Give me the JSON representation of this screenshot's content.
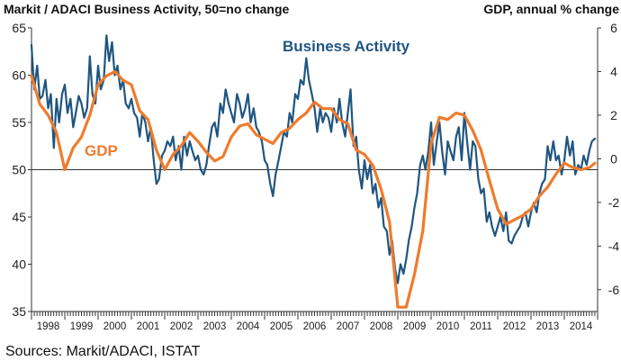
{
  "chart_data": {
    "type": "line",
    "title_left": "Markit / ADACI  Business Activity, 50=no change",
    "title_right": "GDP, annual % change",
    "source": "Sources: Markit/ADACI, ISTAT",
    "x_years": [
      "1998",
      "1999",
      "2000",
      "2001",
      "2002",
      "2003",
      "2004",
      "2005",
      "2006",
      "2007",
      "2008",
      "2009",
      "2010",
      "2011",
      "2012",
      "2013",
      "2014"
    ],
    "x_range": [
      1998.0,
      2015.0
    ],
    "y_left": {
      "ticks": [
        35,
        40,
        45,
        50,
        55,
        60,
        65
      ],
      "range": [
        35,
        65
      ],
      "reference": 50
    },
    "y_right": {
      "ticks": [
        -6,
        -4,
        -2,
        0,
        2,
        4,
        6
      ],
      "range": [
        -7,
        6
      ]
    },
    "colors": {
      "business_activity": "#1f5580",
      "gdp": "#ef7b2c",
      "axis": "#222222"
    },
    "series": [
      {
        "name": "Business Activity",
        "axis": "left",
        "points": [
          [
            1998.0,
            63.2
          ],
          [
            1998.08,
            58.5
          ],
          [
            1998.17,
            61.0
          ],
          [
            1998.25,
            57.5
          ],
          [
            1998.33,
            57.8
          ],
          [
            1998.42,
            59.5
          ],
          [
            1998.5,
            56.5
          ],
          [
            1998.58,
            58.0
          ],
          [
            1998.67,
            52.3
          ],
          [
            1998.75,
            57.5
          ],
          [
            1998.83,
            55.0
          ],
          [
            1998.92,
            58.0
          ],
          [
            1999.0,
            59.0
          ],
          [
            1999.08,
            56.0
          ],
          [
            1999.17,
            57.5
          ],
          [
            1999.25,
            54.5
          ],
          [
            1999.33,
            56.0
          ],
          [
            1999.42,
            57.8
          ],
          [
            1999.5,
            57.0
          ],
          [
            1999.58,
            55.5
          ],
          [
            1999.67,
            56.5
          ],
          [
            1999.75,
            62.0
          ],
          [
            1999.83,
            58.0
          ],
          [
            1999.92,
            57.0
          ],
          [
            2000.0,
            61.0
          ],
          [
            2000.08,
            58.5
          ],
          [
            2000.17,
            59.5
          ],
          [
            2000.25,
            64.2
          ],
          [
            2000.33,
            61.5
          ],
          [
            2000.42,
            63.5
          ],
          [
            2000.5,
            60.0
          ],
          [
            2000.58,
            61.0
          ],
          [
            2000.67,
            58.5
          ],
          [
            2000.75,
            59.5
          ],
          [
            2000.83,
            57.0
          ],
          [
            2000.92,
            56.5
          ],
          [
            2001.0,
            57.5
          ],
          [
            2001.08,
            56.0
          ],
          [
            2001.17,
            55.5
          ],
          [
            2001.25,
            53.5
          ],
          [
            2001.33,
            56.0
          ],
          [
            2001.42,
            55.0
          ],
          [
            2001.5,
            53.0
          ],
          [
            2001.58,
            54.5
          ],
          [
            2001.67,
            51.0
          ],
          [
            2001.75,
            48.5
          ],
          [
            2001.83,
            49.0
          ],
          [
            2001.92,
            51.5
          ],
          [
            2002.0,
            52.0
          ],
          [
            2002.08,
            53.0
          ],
          [
            2002.17,
            52.5
          ],
          [
            2002.25,
            53.5
          ],
          [
            2002.33,
            51.0
          ],
          [
            2002.42,
            52.5
          ],
          [
            2002.5,
            50.0
          ],
          [
            2002.58,
            53.5
          ],
          [
            2002.67,
            51.5
          ],
          [
            2002.75,
            53.0
          ],
          [
            2002.83,
            52.0
          ],
          [
            2002.92,
            51.0
          ],
          [
            2003.0,
            51.5
          ],
          [
            2003.08,
            50.0
          ],
          [
            2003.17,
            49.5
          ],
          [
            2003.25,
            50.5
          ],
          [
            2003.33,
            52.5
          ],
          [
            2003.42,
            54.5
          ],
          [
            2003.5,
            55.0
          ],
          [
            2003.58,
            53.5
          ],
          [
            2003.67,
            57.0
          ],
          [
            2003.75,
            56.0
          ],
          [
            2003.83,
            58.5
          ],
          [
            2003.92,
            57.0
          ],
          [
            2004.0,
            56.0
          ],
          [
            2004.08,
            55.0
          ],
          [
            2004.17,
            58.0
          ],
          [
            2004.25,
            57.0
          ],
          [
            2004.33,
            55.5
          ],
          [
            2004.42,
            56.5
          ],
          [
            2004.5,
            58.0
          ],
          [
            2004.58,
            55.0
          ],
          [
            2004.67,
            56.5
          ],
          [
            2004.75,
            54.5
          ],
          [
            2004.83,
            54.0
          ],
          [
            2004.92,
            53.0
          ],
          [
            2005.0,
            51.0
          ],
          [
            2005.08,
            50.5
          ],
          [
            2005.17,
            48.5
          ],
          [
            2005.25,
            47.2
          ],
          [
            2005.33,
            49.5
          ],
          [
            2005.42,
            51.0
          ],
          [
            2005.5,
            52.5
          ],
          [
            2005.58,
            54.0
          ],
          [
            2005.67,
            53.5
          ],
          [
            2005.75,
            56.0
          ],
          [
            2005.83,
            55.0
          ],
          [
            2005.92,
            58.0
          ],
          [
            2006.0,
            57.5
          ],
          [
            2006.08,
            59.5
          ],
          [
            2006.17,
            59.0
          ],
          [
            2006.25,
            61.8
          ],
          [
            2006.33,
            59.5
          ],
          [
            2006.42,
            58.0
          ],
          [
            2006.5,
            56.5
          ],
          [
            2006.58,
            54.0
          ],
          [
            2006.67,
            56.5
          ],
          [
            2006.75,
            55.0
          ],
          [
            2006.83,
            56.0
          ],
          [
            2006.92,
            55.5
          ],
          [
            2007.0,
            54.0
          ],
          [
            2007.08,
            56.5
          ],
          [
            2007.17,
            55.0
          ],
          [
            2007.25,
            57.5
          ],
          [
            2007.33,
            55.0
          ],
          [
            2007.42,
            53.5
          ],
          [
            2007.5,
            56.0
          ],
          [
            2007.58,
            58.5
          ],
          [
            2007.67,
            52.5
          ],
          [
            2007.75,
            53.5
          ],
          [
            2007.83,
            50.0
          ],
          [
            2007.92,
            48.0
          ],
          [
            2008.0,
            51.0
          ],
          [
            2008.08,
            49.0
          ],
          [
            2008.17,
            50.5
          ],
          [
            2008.25,
            47.5
          ],
          [
            2008.33,
            48.5
          ],
          [
            2008.42,
            46.0
          ],
          [
            2008.5,
            47.0
          ],
          [
            2008.58,
            44.0
          ],
          [
            2008.67,
            43.5
          ],
          [
            2008.75,
            41.0
          ],
          [
            2008.83,
            42.5
          ],
          [
            2008.92,
            39.5
          ],
          [
            2009.0,
            38.0
          ],
          [
            2009.08,
            40.0
          ],
          [
            2009.17,
            39.0
          ],
          [
            2009.25,
            40.5
          ],
          [
            2009.33,
            42.5
          ],
          [
            2009.42,
            44.0
          ],
          [
            2009.5,
            46.0
          ],
          [
            2009.58,
            47.5
          ],
          [
            2009.67,
            50.5
          ],
          [
            2009.75,
            51.5
          ],
          [
            2009.83,
            50.0
          ],
          [
            2009.92,
            52.0
          ],
          [
            2010.0,
            55.0
          ],
          [
            2010.08,
            50.5
          ],
          [
            2010.17,
            53.0
          ],
          [
            2010.25,
            55.0
          ],
          [
            2010.33,
            52.0
          ],
          [
            2010.42,
            49.5
          ],
          [
            2010.5,
            53.0
          ],
          [
            2010.58,
            52.0
          ],
          [
            2010.67,
            51.0
          ],
          [
            2010.75,
            53.5
          ],
          [
            2010.83,
            54.5
          ],
          [
            2010.92,
            51.0
          ],
          [
            2011.0,
            56.0
          ],
          [
            2011.08,
            53.0
          ],
          [
            2011.17,
            50.0
          ],
          [
            2011.25,
            53.0
          ],
          [
            2011.33,
            52.5
          ],
          [
            2011.42,
            49.0
          ],
          [
            2011.5,
            47.5
          ],
          [
            2011.58,
            48.0
          ],
          [
            2011.67,
            44.5
          ],
          [
            2011.75,
            45.5
          ],
          [
            2011.83,
            44.0
          ],
          [
            2011.92,
            43.0
          ],
          [
            2012.0,
            44.0
          ],
          [
            2012.08,
            45.0
          ],
          [
            2012.17,
            43.5
          ],
          [
            2012.25,
            45.5
          ],
          [
            2012.33,
            42.5
          ],
          [
            2012.42,
            42.2
          ],
          [
            2012.5,
            43.0
          ],
          [
            2012.58,
            43.5
          ],
          [
            2012.67,
            44.0
          ],
          [
            2012.75,
            45.0
          ],
          [
            2012.83,
            45.5
          ],
          [
            2012.92,
            44.0
          ],
          [
            2013.0,
            45.5
          ],
          [
            2013.08,
            46.5
          ],
          [
            2013.17,
            45.5
          ],
          [
            2013.25,
            47.5
          ],
          [
            2013.33,
            48.5
          ],
          [
            2013.42,
            49.0
          ],
          [
            2013.5,
            52.5
          ],
          [
            2013.58,
            51.0
          ],
          [
            2013.67,
            53.0
          ],
          [
            2013.75,
            51.0
          ],
          [
            2013.83,
            51.5
          ],
          [
            2013.92,
            49.5
          ],
          [
            2014.0,
            51.0
          ],
          [
            2014.08,
            53.5
          ],
          [
            2014.17,
            51.5
          ],
          [
            2014.25,
            53.0
          ],
          [
            2014.33,
            49.5
          ],
          [
            2014.42,
            50.5
          ],
          [
            2014.5,
            50.0
          ],
          [
            2014.58,
            51.5
          ],
          [
            2014.67,
            50.5
          ],
          [
            2014.75,
            52.0
          ],
          [
            2014.83,
            53.0
          ],
          [
            2014.92,
            53.3
          ]
        ]
      },
      {
        "name": "GDP",
        "axis": "right",
        "points": [
          [
            1998.0,
            3.8
          ],
          [
            1998.25,
            2.5
          ],
          [
            1998.5,
            2.0
          ],
          [
            1998.75,
            1.2
          ],
          [
            1999.0,
            -0.5
          ],
          [
            1999.25,
            0.5
          ],
          [
            1999.5,
            1.0
          ],
          [
            1999.75,
            2.0
          ],
          [
            2000.0,
            3.4
          ],
          [
            2000.25,
            3.8
          ],
          [
            2000.5,
            4.0
          ],
          [
            2000.75,
            3.6
          ],
          [
            2001.0,
            3.4
          ],
          [
            2001.25,
            2.2
          ],
          [
            2001.5,
            1.8
          ],
          [
            2001.75,
            0.4
          ],
          [
            2002.0,
            -0.5
          ],
          [
            2002.25,
            0.2
          ],
          [
            2002.5,
            0.6
          ],
          [
            2002.75,
            1.2
          ],
          [
            2003.0,
            0.8
          ],
          [
            2003.25,
            0.3
          ],
          [
            2003.5,
            -0.1
          ],
          [
            2003.75,
            0.1
          ],
          [
            2004.0,
            1.0
          ],
          [
            2004.25,
            1.5
          ],
          [
            2004.5,
            1.6
          ],
          [
            2004.75,
            1.1
          ],
          [
            2005.0,
            0.9
          ],
          [
            2005.25,
            0.7
          ],
          [
            2005.5,
            1.2
          ],
          [
            2005.75,
            1.4
          ],
          [
            2006.0,
            1.8
          ],
          [
            2006.25,
            2.1
          ],
          [
            2006.5,
            2.6
          ],
          [
            2006.75,
            2.3
          ],
          [
            2007.0,
            2.3
          ],
          [
            2007.25,
            1.8
          ],
          [
            2007.5,
            1.6
          ],
          [
            2007.75,
            0.4
          ],
          [
            2008.0,
            0.2
          ],
          [
            2008.25,
            -0.3
          ],
          [
            2008.5,
            -1.4
          ],
          [
            2008.75,
            -2.9
          ],
          [
            2009.0,
            -6.8
          ],
          [
            2009.25,
            -6.8
          ],
          [
            2009.5,
            -5.3
          ],
          [
            2009.75,
            -3.3
          ],
          [
            2010.0,
            0.7
          ],
          [
            2010.25,
            1.9
          ],
          [
            2010.5,
            1.8
          ],
          [
            2010.75,
            2.1
          ],
          [
            2011.0,
            2.0
          ],
          [
            2011.25,
            1.3
          ],
          [
            2011.5,
            0.4
          ],
          [
            2011.75,
            -1.0
          ],
          [
            2012.0,
            -2.3
          ],
          [
            2012.25,
            -3.0
          ],
          [
            2012.5,
            -2.8
          ],
          [
            2012.75,
            -2.6
          ],
          [
            2013.0,
            -2.3
          ],
          [
            2013.25,
            -1.7
          ],
          [
            2013.5,
            -1.3
          ],
          [
            2013.75,
            -0.7
          ],
          [
            2014.0,
            -0.2
          ],
          [
            2014.25,
            -0.4
          ],
          [
            2014.5,
            -0.5
          ],
          [
            2014.75,
            -0.4
          ],
          [
            2014.92,
            -0.2
          ]
        ]
      }
    ],
    "series_labels": [
      {
        "name": "Business Activity",
        "text": "Business Activity"
      },
      {
        "name": "GDP",
        "text": "GDP"
      }
    ]
  }
}
